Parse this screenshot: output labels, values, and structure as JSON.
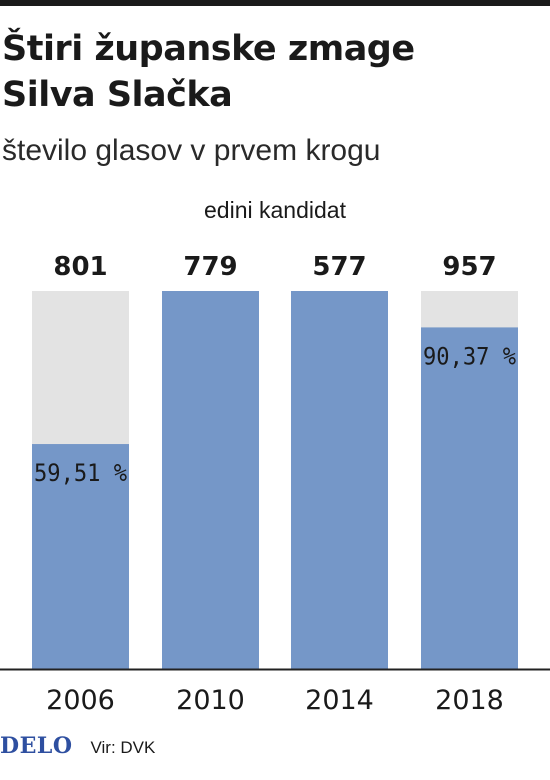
{
  "title_line1": "Štiri županske zmage",
  "title_line2": "Silva Slačka",
  "subtitle": "število glasov v prvem krogu",
  "annotation": "edini kandidat",
  "logo": "DELO",
  "source": "Vir: DVK",
  "colors": {
    "bar": "#7597c8",
    "background_bar": "#e3e3e3",
    "axis": "#222222"
  },
  "chart_data": {
    "type": "bar",
    "categories": [
      "2006",
      "2010",
      "2014",
      "2018"
    ],
    "total_labels": [
      "801",
      "779",
      "577",
      "957"
    ],
    "values": [
      59.51,
      100,
      100,
      90.37
    ],
    "value_labels": [
      "59,51 %",
      "",
      "",
      "90,37 %"
    ],
    "ylim": [
      0,
      100
    ]
  }
}
